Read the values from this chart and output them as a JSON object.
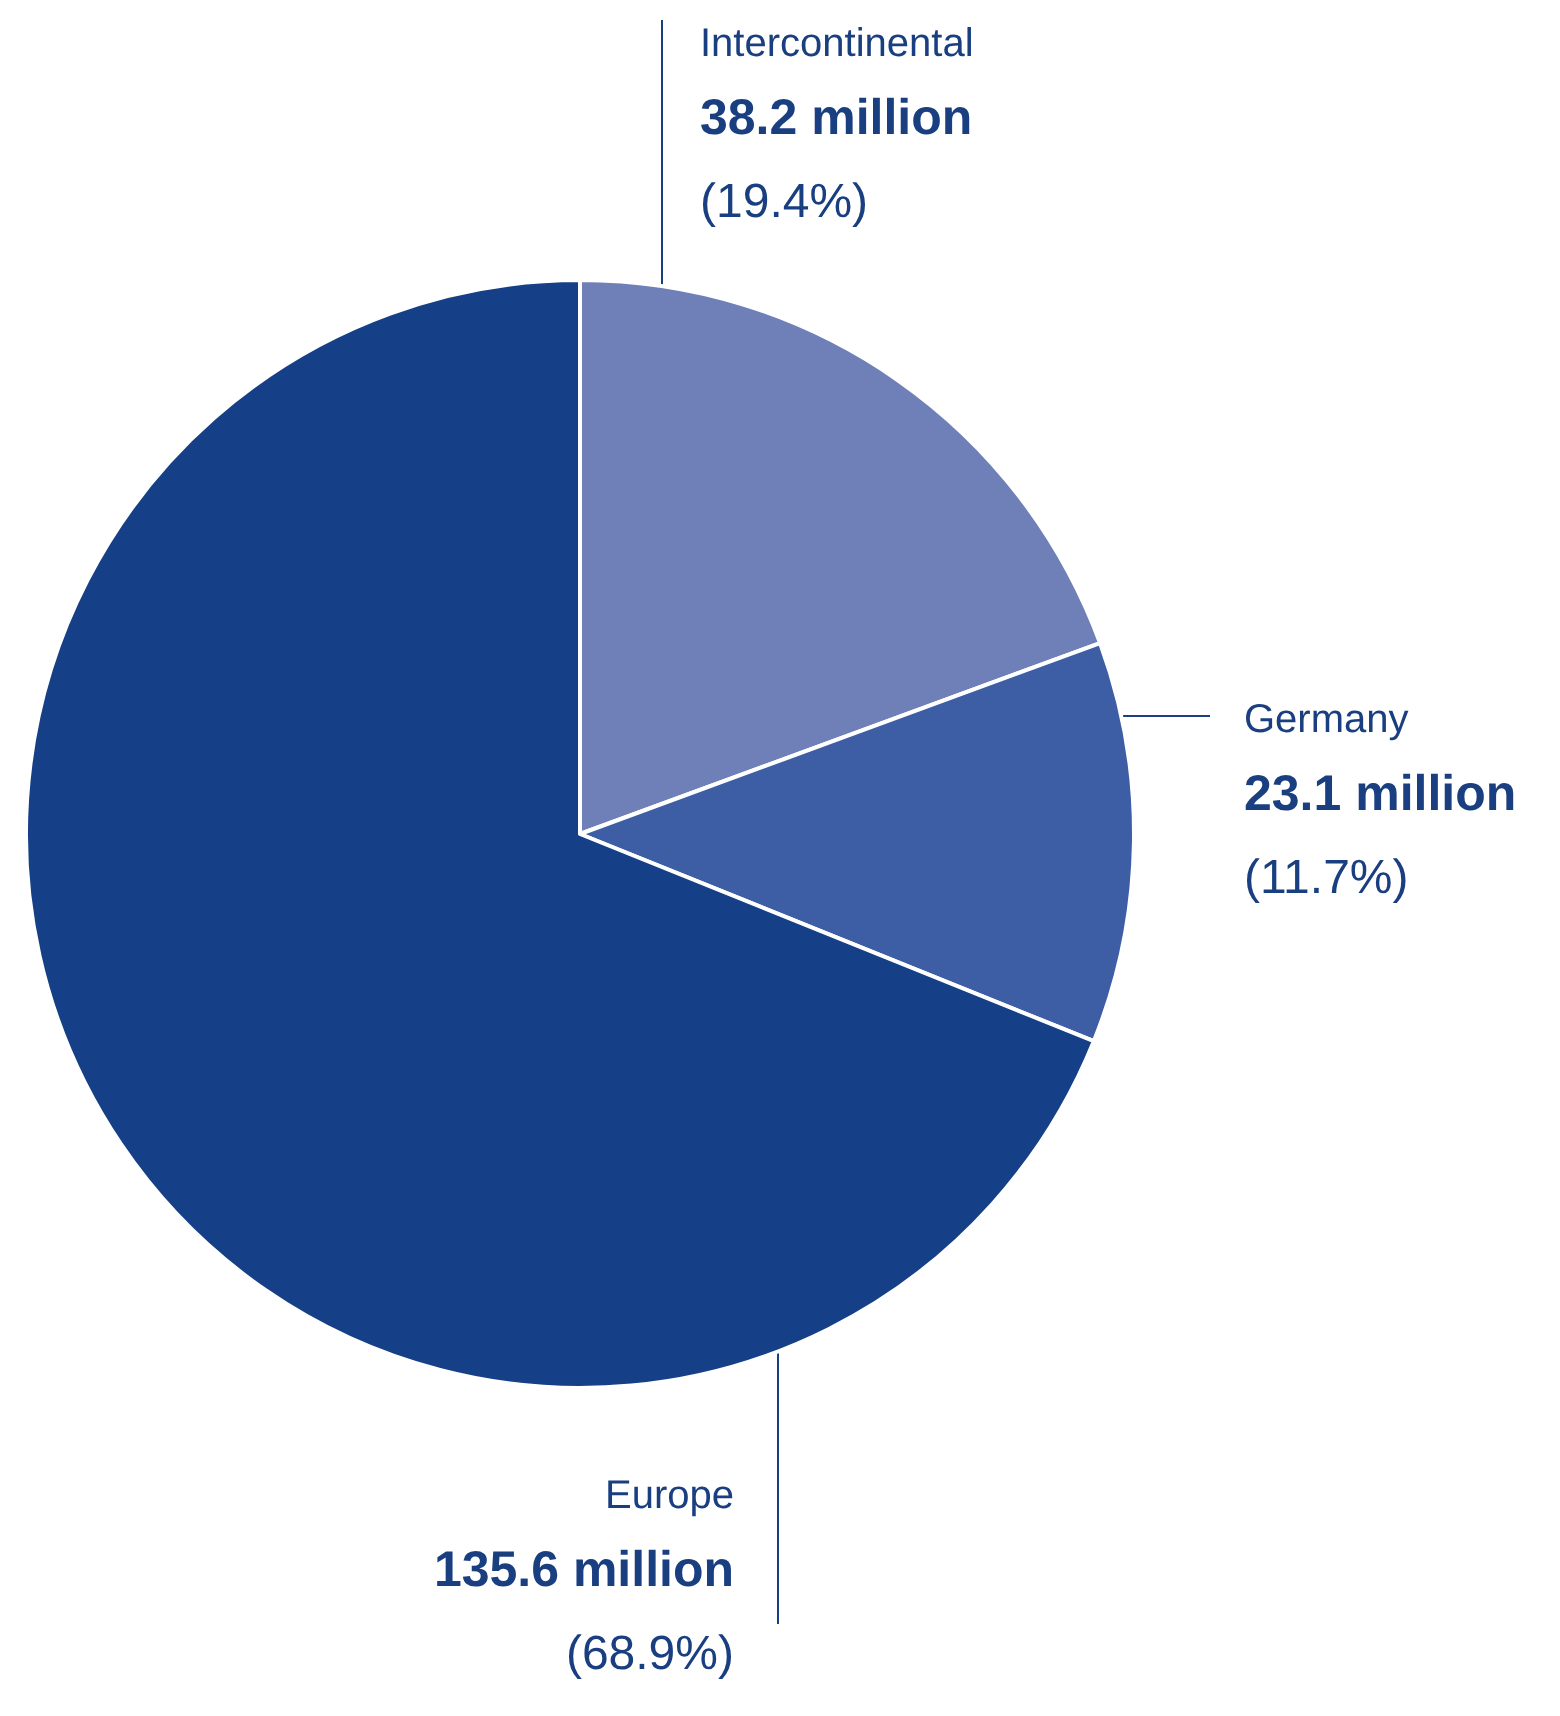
{
  "chart_data": {
    "type": "pie",
    "categories": [
      "Intercontinental",
      "Germany",
      "Europe"
    ],
    "values": [
      19.4,
      11.7,
      68.9
    ],
    "colors": [
      "#6f7fb8",
      "#3d5da5",
      "#153f86"
    ],
    "value_labels": [
      "38.2 million\n(19.4%)",
      "23.1 million\n(11.7%)",
      "135.6 million\n(68.9%)"
    ],
    "legend": false
  }
}
